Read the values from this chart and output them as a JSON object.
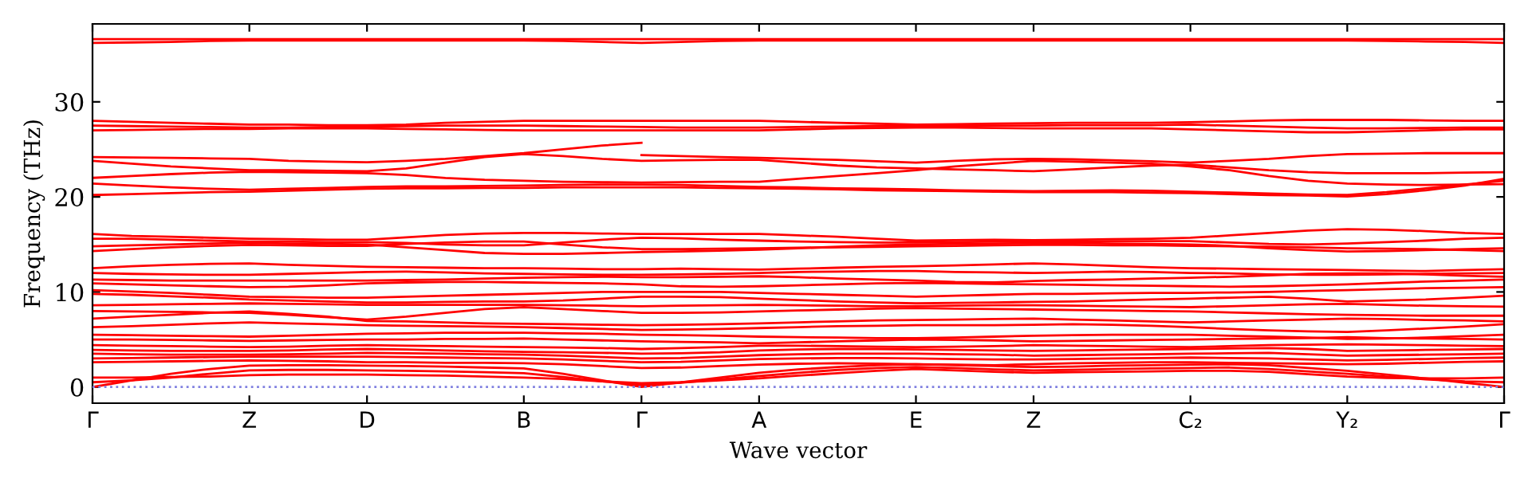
{
  "chart_data": {
    "type": "line",
    "xlabel": "Wave vector",
    "ylabel": "Frequency (THz)",
    "categories": [
      "Γ",
      null,
      null,
      null,
      "Z",
      null,
      null,
      "D",
      null,
      null,
      null,
      "B",
      null,
      null,
      "Γ",
      null,
      null,
      "A",
      null,
      null,
      null,
      "E",
      null,
      null,
      "Z",
      null,
      null,
      null,
      "C₂",
      null,
      null,
      null,
      "Y₂",
      null,
      null,
      null,
      "Γ"
    ],
    "ylim": [
      -1.7,
      38.2
    ],
    "yticks": [
      0,
      10,
      20,
      30
    ],
    "line_style": "solid",
    "grid": false,
    "ref_lines": [
      {
        "axis": "y",
        "value": 0,
        "color": "#8080e0",
        "line_style": "dotted"
      }
    ],
    "series": [
      {
        "color": "#ff0000",
        "values": [
          36.6,
          36.6,
          36.6,
          36.6,
          36.6,
          36.6,
          36.6,
          36.6,
          36.6,
          36.6,
          36.6,
          36.6,
          36.6,
          36.6,
          36.6,
          36.6,
          36.6,
          36.6,
          36.6,
          36.6,
          36.6,
          36.6,
          36.6,
          36.6,
          36.6,
          36.6,
          36.6,
          36.6,
          36.6,
          36.6,
          36.6,
          36.6,
          36.6,
          36.6,
          36.6,
          36.6,
          36.6
        ]
      },
      {
        "color": "#ff0000",
        "values": [
          36.2,
          36.25,
          36.3,
          36.4,
          36.45,
          36.45,
          36.45,
          36.45,
          36.45,
          36.45,
          36.45,
          36.45,
          36.4,
          36.3,
          36.2,
          36.3,
          36.4,
          36.45,
          36.45,
          36.45,
          36.45,
          36.45,
          36.45,
          36.45,
          36.45,
          36.45,
          36.45,
          36.45,
          36.45,
          36.45,
          36.45,
          36.45,
          36.45,
          36.4,
          36.35,
          36.3,
          36.2
        ]
      },
      {
        "color": "#ff0000",
        "values": [
          28.0,
          27.9,
          27.8,
          27.7,
          27.6,
          27.6,
          27.55,
          27.55,
          27.6,
          27.8,
          27.9,
          28.0,
          28.0,
          28.0,
          28.0,
          28.0,
          28.0,
          28.0,
          27.9,
          27.8,
          27.7,
          27.6,
          27.65,
          27.7,
          27.75,
          27.8,
          27.8,
          27.8,
          27.85,
          27.95,
          28.05,
          28.1,
          28.1,
          28.1,
          28.05,
          28.0,
          28.0
        ]
      },
      {
        "color": "#ff0000",
        "values": [
          27.5,
          27.45,
          27.4,
          27.35,
          27.3,
          27.3,
          27.35,
          27.4,
          27.45,
          27.5,
          27.5,
          27.5,
          27.45,
          27.4,
          27.35,
          27.3,
          27.3,
          27.3,
          27.35,
          27.4,
          27.45,
          27.45,
          27.5,
          27.5,
          27.5,
          27.55,
          27.55,
          27.55,
          27.6,
          27.5,
          27.4,
          27.3,
          27.2,
          27.2,
          27.25,
          27.3,
          27.3
        ]
      },
      {
        "color": "#ff0000",
        "values": [
          27.0,
          27.05,
          27.1,
          27.15,
          27.15,
          27.2,
          27.2,
          27.2,
          27.15,
          27.1,
          27.05,
          27.0,
          27.0,
          27.0,
          27.0,
          27.0,
          27.0,
          27.0,
          27.1,
          27.2,
          27.25,
          27.3,
          27.3,
          27.25,
          27.2,
          27.2,
          27.2,
          27.2,
          27.1,
          27.0,
          26.9,
          26.8,
          26.8,
          26.9,
          27.0,
          27.1,
          27.1
        ]
      },
      {
        "color": "#ff0000",
        "values": [
          24.2,
          24.15,
          24.1,
          24.05,
          24.0,
          23.8,
          23.7,
          23.65,
          23.8,
          24.0,
          24.3,
          24.6,
          25.0,
          25.4,
          25.7,
          null,
          null,
          null,
          null,
          null,
          null,
          null,
          null,
          null,
          null,
          null,
          null,
          null,
          null,
          null,
          null,
          null,
          null,
          null,
          null,
          null,
          null
        ]
      },
      {
        "color": "#ff0000",
        "values": [
          null,
          null,
          null,
          null,
          null,
          null,
          null,
          null,
          null,
          null,
          null,
          null,
          null,
          null,
          24.4,
          24.3,
          24.2,
          24.1,
          24.0,
          23.9,
          23.75,
          23.6,
          23.8,
          23.95,
          24.0,
          23.95,
          23.85,
          23.75,
          23.6,
          23.8,
          24.0,
          24.3,
          24.5,
          24.55,
          24.6,
          24.6,
          24.6
        ]
      },
      {
        "color": "#ff0000",
        "values": [
          23.8,
          23.5,
          23.2,
          23.0,
          22.8,
          22.8,
          22.75,
          22.7,
          23.0,
          23.6,
          24.2,
          24.5,
          24.3,
          24.0,
          23.8,
          23.85,
          23.9,
          23.9,
          23.6,
          23.3,
          23.1,
          23.0,
          22.9,
          22.8,
          22.7,
          22.9,
          23.1,
          23.3,
          23.4,
          23.1,
          22.8,
          22.6,
          22.5,
          22.5,
          22.5,
          22.55,
          22.6
        ]
      },
      {
        "color": "#ff0000",
        "values": [
          22.0,
          22.2,
          22.4,
          22.55,
          22.65,
          22.6,
          22.55,
          22.5,
          22.3,
          22.0,
          21.8,
          21.7,
          21.6,
          21.55,
          21.5,
          21.55,
          21.6,
          21.6,
          21.9,
          22.2,
          22.5,
          22.8,
          23.2,
          23.5,
          23.8,
          23.7,
          23.6,
          23.5,
          23.2,
          22.8,
          22.2,
          21.7,
          21.4,
          21.3,
          21.25,
          21.3,
          21.35
        ]
      },
      {
        "color": "#ff0000",
        "values": [
          21.4,
          21.2,
          21.0,
          20.85,
          20.75,
          20.85,
          20.95,
          21.05,
          21.1,
          21.1,
          21.15,
          21.2,
          21.25,
          21.3,
          21.3,
          21.25,
          21.15,
          21.05,
          21.0,
          20.9,
          20.85,
          20.8,
          20.7,
          20.65,
          20.6,
          20.65,
          20.7,
          20.65,
          20.55,
          20.45,
          20.35,
          20.25,
          20.2,
          20.5,
          20.9,
          21.3,
          21.7
        ]
      },
      {
        "color": "#ff0000",
        "values": [
          20.2,
          20.3,
          20.4,
          20.5,
          20.55,
          20.65,
          20.75,
          20.85,
          20.9,
          20.9,
          20.95,
          20.95,
          21.0,
          21.0,
          21.0,
          21.0,
          20.95,
          20.9,
          20.85,
          20.8,
          20.7,
          20.65,
          20.6,
          20.55,
          20.5,
          20.5,
          20.5,
          20.45,
          20.4,
          20.3,
          20.2,
          20.15,
          20.05,
          20.3,
          20.7,
          21.2,
          21.9
        ]
      },
      {
        "color": "#ff0000",
        "values": [
          16.1,
          15.9,
          15.8,
          15.7,
          15.6,
          15.55,
          15.5,
          15.5,
          15.75,
          16.0,
          16.15,
          16.2,
          16.2,
          16.15,
          16.1,
          16.1,
          16.1,
          16.1,
          15.95,
          15.8,
          15.6,
          15.4,
          15.45,
          15.5,
          15.45,
          15.5,
          15.55,
          15.6,
          15.7,
          15.95,
          16.2,
          16.45,
          16.6,
          16.55,
          16.4,
          16.2,
          16.1
        ]
      },
      {
        "color": "#ff0000",
        "values": [
          15.6,
          15.6,
          15.5,
          15.4,
          15.3,
          15.3,
          15.25,
          15.25,
          15.15,
          15.0,
          14.9,
          14.9,
          15.2,
          15.5,
          15.7,
          15.65,
          15.5,
          15.4,
          15.3,
          15.25,
          15.2,
          15.2,
          15.25,
          15.3,
          15.3,
          15.3,
          15.35,
          15.35,
          15.35,
          15.2,
          15.05,
          15.0,
          15.1,
          15.25,
          15.4,
          15.6,
          15.7
        ]
      },
      {
        "color": "#ff0000",
        "values": [
          14.8,
          14.9,
          15.0,
          15.1,
          15.15,
          15.1,
          15.05,
          15.0,
          14.7,
          14.4,
          14.1,
          14.0,
          14.0,
          14.1,
          14.2,
          14.25,
          14.35,
          14.45,
          14.6,
          14.75,
          14.9,
          15.0,
          15.05,
          15.1,
          15.15,
          15.15,
          15.1,
          15.05,
          15.0,
          14.85,
          14.6,
          14.4,
          14.25,
          14.3,
          14.4,
          14.5,
          14.6
        ]
      },
      {
        "color": "#ff0000",
        "values": [
          14.3,
          14.5,
          14.7,
          14.85,
          14.95,
          14.9,
          14.85,
          14.85,
          15.05,
          15.2,
          15.3,
          15.3,
          15.0,
          14.7,
          14.5,
          14.5,
          14.55,
          14.6,
          14.65,
          14.7,
          14.75,
          14.8,
          14.85,
          14.9,
          14.95,
          14.95,
          14.9,
          14.9,
          14.85,
          14.8,
          14.75,
          14.7,
          14.6,
          14.55,
          14.5,
          14.4,
          14.3
        ]
      },
      {
        "color": "#ff0000",
        "values": [
          12.5,
          12.7,
          12.85,
          12.95,
          13.0,
          12.85,
          12.75,
          12.65,
          12.6,
          12.55,
          12.5,
          12.5,
          12.45,
          12.4,
          12.4,
          12.45,
          12.4,
          12.35,
          12.45,
          12.55,
          12.65,
          12.7,
          12.8,
          12.9,
          13.0,
          12.9,
          12.75,
          12.6,
          12.5,
          12.45,
          12.4,
          12.35,
          12.3,
          12.25,
          12.2,
          12.3,
          12.4
        ]
      },
      {
        "color": "#ff0000",
        "values": [
          12.0,
          11.9,
          11.85,
          11.8,
          11.8,
          11.9,
          12.0,
          12.1,
          12.15,
          12.05,
          11.95,
          11.9,
          11.85,
          11.8,
          11.8,
          11.85,
          11.9,
          12.0,
          12.1,
          12.15,
          12.2,
          12.2,
          12.1,
          12.05,
          12.0,
          12.05,
          12.15,
          12.1,
          12.0,
          11.95,
          11.85,
          11.8,
          11.8,
          11.85,
          11.9,
          11.95,
          12.0
        ]
      },
      {
        "color": "#ff0000",
        "values": [
          11.3,
          11.25,
          11.2,
          11.2,
          11.2,
          11.2,
          11.2,
          11.2,
          11.25,
          11.3,
          11.4,
          11.5,
          11.55,
          11.6,
          11.55,
          11.55,
          11.6,
          11.65,
          11.55,
          11.4,
          11.3,
          11.2,
          11.05,
          11.0,
          11.15,
          11.25,
          11.3,
          11.4,
          11.5,
          11.6,
          11.75,
          11.9,
          11.95,
          11.95,
          11.85,
          11.7,
          11.6
        ]
      },
      {
        "color": "#ff0000",
        "values": [
          10.9,
          10.8,
          10.7,
          10.6,
          10.5,
          10.55,
          10.7,
          10.9,
          11.0,
          11.05,
          11.05,
          11.0,
          10.95,
          10.9,
          10.8,
          10.6,
          10.55,
          10.6,
          10.7,
          10.8,
          10.9,
          10.95,
          10.9,
          10.85,
          10.8,
          10.75,
          10.7,
          10.65,
          10.6,
          10.55,
          10.6,
          10.7,
          10.8,
          10.95,
          11.1,
          11.2,
          11.3
        ]
      },
      {
        "color": "#ff0000",
        "values": [
          10.2,
          10.05,
          9.9,
          9.7,
          9.5,
          9.45,
          9.4,
          9.4,
          9.5,
          9.6,
          9.7,
          9.8,
          9.9,
          10.0,
          10.0,
          10.0,
          10.0,
          9.9,
          9.8,
          9.7,
          9.6,
          9.5,
          9.6,
          9.7,
          9.8,
          9.8,
          9.85,
          9.9,
          9.9,
          9.95,
          10.0,
          10.1,
          10.2,
          10.3,
          10.4,
          10.45,
          10.5
        ]
      },
      {
        "color": "#ff0000",
        "values": [
          9.8,
          9.7,
          9.55,
          9.4,
          9.2,
          9.1,
          9.0,
          8.9,
          8.9,
          8.95,
          9.0,
          9.0,
          9.1,
          9.3,
          9.5,
          9.5,
          9.45,
          9.3,
          9.15,
          9.0,
          8.9,
          8.8,
          8.85,
          8.9,
          8.95,
          9.0,
          9.1,
          9.2,
          9.3,
          9.4,
          9.5,
          9.3,
          9.0,
          9.1,
          9.2,
          9.4,
          9.6
        ]
      },
      {
        "color": "#ff0000",
        "values": [
          8.6,
          8.65,
          8.7,
          8.75,
          8.8,
          8.75,
          8.7,
          8.65,
          8.65,
          8.65,
          8.65,
          8.65,
          8.6,
          8.55,
          8.5,
          8.55,
          8.6,
          8.65,
          8.6,
          8.55,
          8.5,
          8.5,
          8.55,
          8.6,
          8.6,
          8.55,
          8.5,
          8.45,
          8.4,
          8.5,
          8.6,
          8.7,
          8.75,
          8.65,
          8.55,
          8.5,
          8.45
        ]
      },
      {
        "color": "#ff0000",
        "values": [
          8.0,
          7.95,
          7.9,
          7.85,
          7.8,
          7.6,
          7.35,
          7.1,
          7.4,
          7.8,
          8.2,
          8.4,
          8.2,
          8.0,
          7.8,
          7.8,
          7.85,
          7.95,
          8.05,
          8.15,
          8.25,
          8.3,
          8.25,
          8.2,
          8.15,
          8.1,
          8.05,
          8.0,
          7.95,
          7.85,
          7.75,
          7.65,
          7.6,
          7.55,
          7.5,
          7.5,
          7.5
        ]
      },
      {
        "color": "#ff0000",
        "values": [
          7.2,
          7.4,
          7.6,
          7.8,
          7.95,
          7.7,
          7.4,
          6.95,
          6.9,
          6.8,
          6.7,
          6.65,
          6.6,
          6.55,
          6.5,
          6.55,
          6.6,
          6.7,
          6.8,
          6.9,
          7.0,
          7.05,
          7.1,
          7.15,
          7.2,
          7.1,
          7.0,
          6.9,
          6.8,
          6.9,
          7.0,
          7.1,
          7.2,
          7.15,
          7.05,
          7.0,
          6.9
        ]
      },
      {
        "color": "#ff0000",
        "values": [
          6.3,
          6.4,
          6.55,
          6.7,
          6.8,
          6.7,
          6.6,
          6.5,
          6.45,
          6.4,
          6.35,
          6.3,
          6.2,
          6.1,
          6.0,
          6.05,
          6.1,
          6.2,
          6.3,
          6.4,
          6.45,
          6.5,
          6.5,
          6.5,
          6.55,
          6.6,
          6.55,
          6.45,
          6.3,
          6.1,
          5.95,
          5.85,
          5.8,
          5.95,
          6.15,
          6.35,
          6.6
        ]
      },
      {
        "color": "#ff0000",
        "values": [
          5.5,
          5.45,
          5.4,
          5.35,
          5.3,
          5.4,
          5.5,
          5.6,
          5.65,
          5.7,
          5.7,
          5.7,
          5.65,
          5.6,
          5.5,
          5.45,
          5.4,
          5.3,
          5.25,
          5.2,
          5.15,
          5.15,
          5.2,
          5.3,
          5.4,
          5.45,
          5.5,
          5.5,
          5.5,
          5.4,
          5.3,
          5.2,
          5.05,
          5.1,
          5.2,
          5.35,
          5.5
        ]
      },
      {
        "color": "#ff0000",
        "values": [
          5.0,
          5.0,
          4.95,
          4.9,
          4.85,
          4.9,
          4.95,
          5.0,
          5.0,
          5.05,
          5.05,
          5.1,
          5.0,
          4.9,
          4.8,
          4.75,
          4.7,
          4.6,
          4.7,
          4.8,
          4.9,
          5.0,
          4.95,
          4.9,
          4.8,
          4.85,
          4.9,
          4.95,
          5.0,
          5.05,
          5.1,
          5.15,
          5.25,
          5.15,
          5.1,
          5.05,
          5.0
        ]
      },
      {
        "color": "#ff0000",
        "values": [
          4.4,
          4.35,
          4.3,
          4.25,
          4.2,
          4.25,
          4.35,
          4.4,
          4.35,
          4.3,
          4.25,
          4.2,
          4.15,
          4.1,
          4.0,
          4.1,
          4.2,
          4.35,
          4.35,
          4.3,
          4.25,
          4.2,
          4.25,
          4.3,
          4.4,
          4.35,
          4.3,
          4.25,
          4.2,
          4.3,
          4.4,
          4.45,
          4.5,
          4.45,
          4.4,
          4.35,
          4.3
        ]
      },
      {
        "color": "#ff0000",
        "values": [
          3.9,
          3.85,
          3.8,
          3.8,
          3.8,
          3.85,
          3.95,
          4.0,
          3.95,
          3.85,
          3.75,
          3.7,
          3.65,
          3.6,
          3.5,
          3.55,
          3.65,
          3.85,
          3.95,
          4.0,
          4.0,
          3.95,
          3.9,
          3.85,
          3.8,
          3.85,
          3.9,
          3.95,
          4.0,
          4.05,
          4.1,
          4.0,
          3.8,
          3.85,
          3.9,
          3.95,
          4.0
        ]
      },
      {
        "color": "#ff0000",
        "values": [
          3.5,
          3.45,
          3.4,
          3.4,
          3.4,
          3.45,
          3.5,
          3.6,
          3.55,
          3.5,
          3.45,
          3.4,
          3.3,
          3.15,
          3.0,
          3.05,
          3.2,
          3.35,
          3.45,
          3.5,
          3.5,
          3.5,
          3.45,
          3.4,
          3.3,
          3.35,
          3.4,
          3.45,
          3.5,
          3.55,
          3.6,
          3.45,
          3.3,
          3.35,
          3.4,
          3.45,
          3.5
        ]
      },
      {
        "color": "#ff0000",
        "values": [
          3.0,
          3.05,
          3.1,
          3.15,
          3.2,
          3.2,
          3.2,
          3.2,
          3.15,
          3.1,
          3.05,
          3.0,
          2.9,
          2.75,
          2.6,
          2.65,
          2.8,
          2.95,
          3.0,
          3.05,
          3.05,
          3.0,
          2.95,
          2.9,
          2.9,
          2.95,
          3.0,
          3.05,
          3.1,
          3.05,
          3.0,
          2.9,
          2.8,
          2.85,
          2.95,
          3.05,
          3.1
        ]
      },
      {
        "color": "#ff0000",
        "values": [
          2.6,
          2.65,
          2.7,
          2.75,
          2.8,
          2.75,
          2.7,
          2.6,
          2.6,
          2.55,
          2.55,
          2.5,
          2.4,
          2.2,
          2.0,
          2.05,
          2.2,
          2.35,
          2.45,
          2.5,
          2.45,
          2.4,
          2.35,
          2.3,
          2.4,
          2.5,
          2.55,
          2.6,
          2.6,
          2.55,
          2.5,
          2.45,
          2.4,
          2.45,
          2.55,
          2.65,
          2.7
        ]
      },
      {
        "color": "#ff0000",
        "values": [
          0,
          0.7,
          1.4,
          1.9,
          2.25,
          2.3,
          2.3,
          2.25,
          2.2,
          2.15,
          2.05,
          1.95,
          1.4,
          0.7,
          0,
          0.5,
          1.0,
          1.5,
          1.85,
          2.1,
          2.3,
          2.4,
          2.3,
          2.2,
          2.1,
          2.15,
          2.25,
          2.3,
          2.35,
          2.4,
          2.3,
          2.0,
          1.7,
          1.3,
          0.9,
          0.45,
          0
        ]
      },
      {
        "color": "#ff0000",
        "values": [
          0.5,
          0.7,
          1.0,
          1.4,
          1.75,
          1.8,
          1.8,
          1.75,
          1.7,
          1.65,
          1.55,
          1.45,
          1.05,
          0.6,
          0.2,
          0.45,
          0.8,
          1.15,
          1.5,
          1.8,
          2.0,
          2.1,
          2.0,
          1.85,
          1.75,
          1.8,
          1.9,
          1.95,
          2.0,
          2.05,
          1.9,
          1.65,
          1.4,
          1.1,
          0.8,
          0.6,
          0.5
        ]
      },
      {
        "color": "#ff0000",
        "values": [
          1.0,
          1.0,
          1.05,
          1.1,
          1.25,
          1.3,
          1.3,
          1.3,
          1.25,
          1.2,
          1.1,
          1.0,
          0.85,
          0.6,
          0.4,
          0.5,
          0.7,
          0.9,
          1.2,
          1.45,
          1.7,
          1.9,
          1.75,
          1.6,
          1.5,
          1.55,
          1.6,
          1.65,
          1.7,
          1.7,
          1.6,
          1.35,
          1.1,
          0.95,
          0.9,
          0.9,
          1.0
        ]
      }
    ]
  }
}
